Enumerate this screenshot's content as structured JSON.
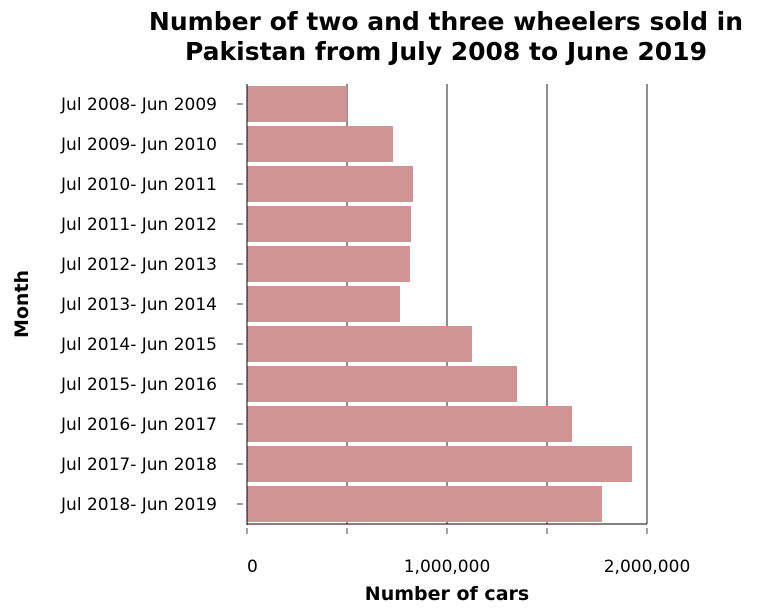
{
  "chart_data": {
    "type": "bar",
    "orientation": "horizontal",
    "title": "Number of two and three wheelers sold in Pakistan from July 2008 to June 2019",
    "title_lines": [
      "Number of two and three wheelers sold in",
      "Pakistan from July 2008 to June 2019"
    ],
    "xlabel": "Number of cars",
    "ylabel": "Month",
    "xlim": [
      0,
      2000000
    ],
    "xticks": [
      0,
      1000000,
      2000000
    ],
    "xtick_labels": [
      "0",
      "1,000,000",
      "2,000,000"
    ],
    "grid": true,
    "categories": [
      "Jul 2008- Jun 2009",
      "Jul 2009- Jun 2010",
      "Jul 2010- Jun 2011",
      "Jul 2011- Jun 2012",
      "Jul 2012- Jun 2013",
      "Jul 2013- Jun 2014",
      "Jul 2014- Jun 2015",
      "Jul 2015- Jun 2016",
      "Jul 2016- Jun 2017",
      "Jul 2017- Jun 2018",
      "Jul 2018- Jun 2019"
    ],
    "values": [
      500000,
      730000,
      830000,
      820000,
      815000,
      765000,
      1125000,
      1350000,
      1625000,
      1925000,
      1775000
    ],
    "bar_color": "#d09494"
  }
}
